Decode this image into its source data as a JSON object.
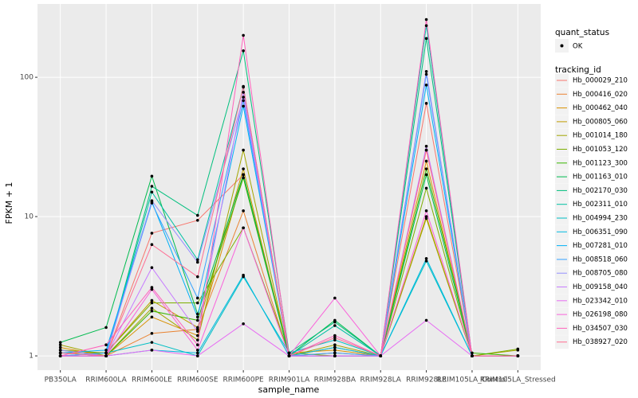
{
  "chart_data": {
    "type": "line",
    "x_label": "sample_name",
    "y_label": "FPKM + 1",
    "point_legend_title": "quant_status",
    "point_legend_label": "OK",
    "legend_title": "tracking_id",
    "log_scale": true,
    "grid": true,
    "point_color": "#000000",
    "categories": [
      "PB350LA",
      "RRIM600LA",
      "RRIM600LE",
      "RRIM600SE",
      "RRIM600PE",
      "RRIM901LA",
      "RRIM928BA",
      "RRIM928LA",
      "RRIM928LE",
      "RRIM105LA_Control",
      "RRIM105LA_Stressed"
    ],
    "ylim": [
      0.79,
      336
    ],
    "yticks": [
      1,
      10,
      100
    ],
    "series": [
      {
        "name": "Hb_000029_210",
        "color": "#F8766D",
        "values": [
          1.0,
          1.0,
          7.6,
          9.4,
          20,
          1.0,
          1.0,
          1.0,
          65,
          1.0,
          1.0
        ]
      },
      {
        "name": "Hb_000416_020",
        "color": "#EA8331",
        "values": [
          1.1,
          1.0,
          1.45,
          1.55,
          11,
          1.0,
          1.05,
          1.0,
          30,
          1.0,
          1.0
        ]
      },
      {
        "name": "Hb_000462_040",
        "color": "#D89000",
        "values": [
          1.15,
          1.0,
          1.9,
          1.4,
          20,
          1.05,
          1.1,
          1.0,
          25,
          1.0,
          1.0
        ]
      },
      {
        "name": "Hb_000805_060",
        "color": "#C09B00",
        "values": [
          1.05,
          1.05,
          2.5,
          1.6,
          22,
          1.0,
          1.15,
          1.0,
          10,
          1.0,
          1.0
        ]
      },
      {
        "name": "Hb_001014_180",
        "color": "#A3A500",
        "values": [
          1.2,
          1.0,
          2.2,
          1.3,
          30,
          1.0,
          1.2,
          1.0,
          9.7,
          1.0,
          1.1
        ]
      },
      {
        "name": "Hb_001053_120",
        "color": "#7CAE00",
        "values": [
          1.1,
          1.05,
          2.4,
          2.4,
          8.3,
          1.05,
          1.0,
          1.0,
          16,
          1.0,
          1.12
        ]
      },
      {
        "name": "Hb_001123_300",
        "color": "#39B600",
        "values": [
          1.0,
          1.0,
          2.1,
          1.8,
          19,
          1.0,
          1.0,
          1.0,
          22,
          1.05,
          1.0
        ]
      },
      {
        "name": "Hb_001163_010",
        "color": "#00BB4E",
        "values": [
          1.25,
          1.6,
          19.5,
          2.0,
          20,
          1.0,
          1.8,
          1.0,
          20,
          1.0,
          1.0
        ]
      },
      {
        "name": "Hb_002170_030",
        "color": "#00BF7D",
        "values": [
          1.0,
          1.0,
          16.5,
          10.2,
          155,
          1.05,
          1.75,
          1.0,
          190,
          1.0,
          1.0
        ]
      },
      {
        "name": "Hb_002311_010",
        "color": "#00C1A3",
        "values": [
          1.05,
          1.0,
          15,
          4.9,
          85,
          1.0,
          1.65,
          1.0,
          235,
          1.0,
          1.0
        ]
      },
      {
        "name": "Hb_004994_230",
        "color": "#00BFC4",
        "values": [
          1.0,
          1.05,
          1.25,
          1.0,
          3.7,
          1.05,
          1.3,
          1.0,
          4.8,
          1.0,
          1.0
        ]
      },
      {
        "name": "Hb_006351_090",
        "color": "#00BAE0",
        "values": [
          1.0,
          1.0,
          1.1,
          1.05,
          3.8,
          1.0,
          1.15,
          1.0,
          5.0,
          1.0,
          1.0
        ]
      },
      {
        "name": "Hb_007281_010",
        "color": "#00B0F6",
        "values": [
          1.05,
          1.1,
          12.8,
          1.9,
          62,
          1.0,
          1.0,
          1.0,
          88,
          1.0,
          1.0
        ]
      },
      {
        "name": "Hb_008518_060",
        "color": "#35A2FF",
        "values": [
          1.0,
          1.05,
          12.5,
          2.6,
          68,
          1.0,
          1.05,
          1.0,
          105,
          1.0,
          1.0
        ]
      },
      {
        "name": "Hb_008705_080",
        "color": "#9590FF",
        "values": [
          1.1,
          1.0,
          13,
          4.7,
          72,
          1.0,
          1.0,
          1.0,
          110,
          1.0,
          1.0
        ]
      },
      {
        "name": "Hb_009158_040",
        "color": "#C77CFF",
        "values": [
          1.0,
          1.0,
          4.3,
          1.5,
          78,
          1.0,
          1.0,
          1.0,
          32,
          1.0,
          1.0
        ]
      },
      {
        "name": "Hb_023342_010",
        "color": "#E76BF3",
        "values": [
          1.0,
          1.0,
          1.1,
          1.0,
          1.7,
          1.0,
          1.0,
          1.0,
          1.8,
          1.0,
          1.0
        ]
      },
      {
        "name": "Hb_026198_080",
        "color": "#FA62DB",
        "values": [
          1.0,
          1.0,
          3.0,
          1.1,
          8.3,
          1.0,
          2.6,
          1.0,
          11,
          1.0,
          1.0
        ]
      },
      {
        "name": "Hb_034507_030",
        "color": "#FF62BC",
        "values": [
          1.0,
          1.2,
          3.1,
          1.2,
          200,
          1.0,
          1.4,
          1.0,
          260,
          1.0,
          1.0
        ]
      },
      {
        "name": "Hb_038927_020",
        "color": "#FF6C91",
        "values": [
          1.05,
          1.0,
          6.3,
          3.7,
          86,
          1.0,
          1.35,
          1.0,
          30,
          1.0,
          1.0
        ]
      }
    ]
  }
}
